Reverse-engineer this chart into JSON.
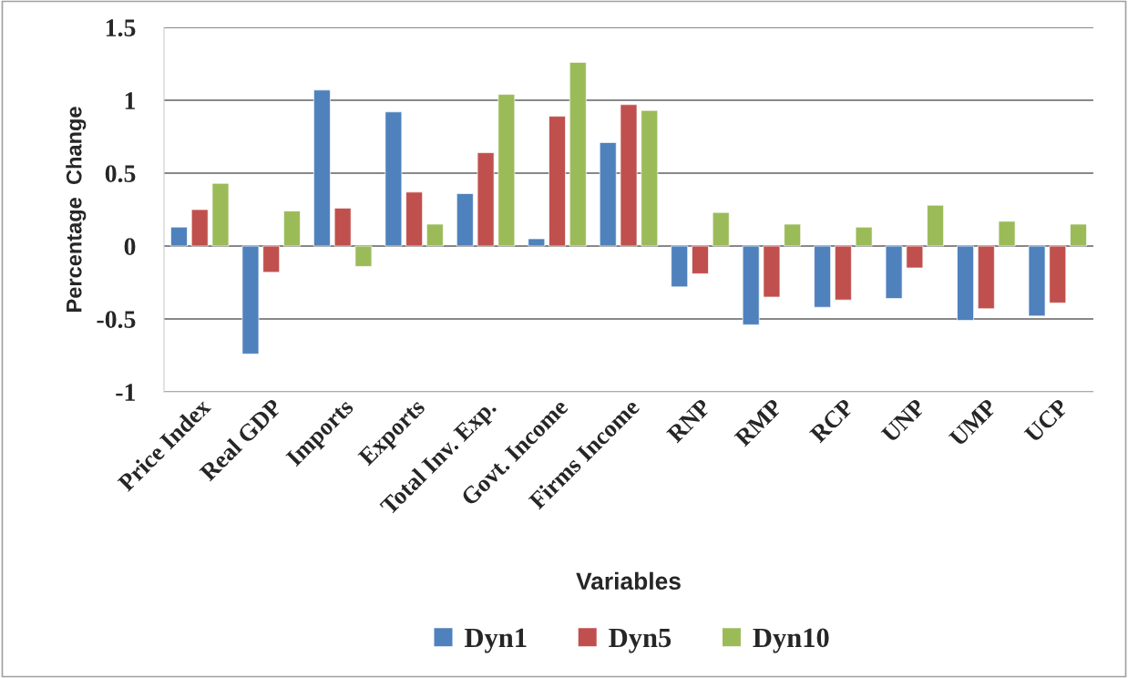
{
  "chart_data": {
    "type": "bar",
    "xlabel": "Variables",
    "ylabel": "Percentage  Change",
    "categories": [
      "Price Index",
      "Real GDP",
      "Imports",
      "Exports",
      "Total Inv. Exp.",
      "Govt. Income",
      "Firms Income",
      "RNP",
      "RMP",
      "RCP",
      "UNP",
      "UMP",
      "UCP"
    ],
    "series": [
      {
        "name": "Dyn1",
        "color": "#4f81bd",
        "values": [
          0.13,
          -0.74,
          1.07,
          0.92,
          0.36,
          0.05,
          0.71,
          -0.28,
          -0.54,
          -0.42,
          -0.36,
          -0.51,
          -0.48
        ]
      },
      {
        "name": "Dyn5",
        "color": "#c0504d",
        "values": [
          0.25,
          -0.18,
          0.26,
          0.37,
          0.64,
          0.89,
          0.97,
          -0.19,
          -0.35,
          -0.37,
          -0.15,
          -0.43,
          -0.39
        ]
      },
      {
        "name": "Dyn10",
        "color": "#9bbb59",
        "values": [
          0.43,
          0.24,
          -0.14,
          0.15,
          1.04,
          1.26,
          0.93,
          0.23,
          0.15,
          0.13,
          0.28,
          0.17,
          0.15
        ]
      }
    ],
    "ylim": [
      -1,
      1.5
    ],
    "yticks": [
      -1,
      -0.5,
      0,
      0.5,
      1,
      1.5
    ],
    "grid": "y",
    "legend": "bottom"
  }
}
